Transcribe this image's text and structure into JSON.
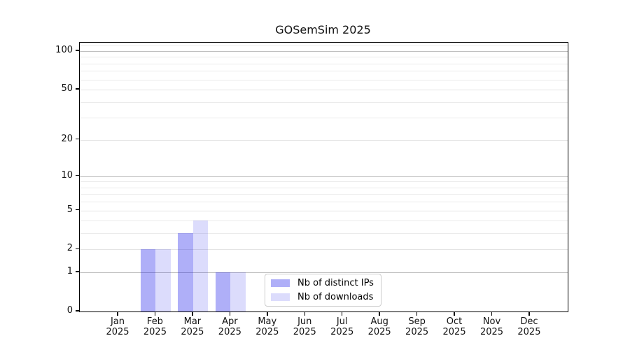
{
  "chart_data": {
    "type": "bar",
    "title": "GOSemSim 2025",
    "categories": [
      "Jan",
      "Feb",
      "Mar",
      "Apr",
      "May",
      "Jun",
      "Jul",
      "Aug",
      "Sep",
      "Oct",
      "Nov",
      "Dec"
    ],
    "year_label": "2025",
    "series": [
      {
        "name": "Nb of distinct IPs",
        "color": "rgba(20,20,235,0.34)",
        "values": [
          0,
          2,
          3,
          1,
          0,
          0,
          0,
          0,
          0,
          0,
          0,
          0
        ]
      },
      {
        "name": "Nb of downloads",
        "color": "rgba(20,20,235,0.15)",
        "values": [
          0,
          2,
          4,
          1,
          0,
          0,
          0,
          0,
          0,
          0,
          0,
          0
        ]
      }
    ],
    "yscale": "log1p",
    "ylim": [
      0,
      116
    ],
    "ytick_values": [
      0,
      1,
      2,
      5,
      10,
      20,
      50,
      100
    ],
    "ytick_labels": [
      "0",
      "1",
      "2",
      "5",
      "10",
      "20",
      "50",
      "100"
    ],
    "major_gridline_values": [
      1,
      10,
      100
    ],
    "sub_gridline_values": [
      2,
      5,
      20,
      50
    ],
    "minor_gridline_values": [
      3,
      4,
      6,
      7,
      8,
      9,
      30,
      40,
      60,
      70,
      80,
      90,
      110
    ],
    "grid": "on",
    "legend_position": "lower-center",
    "colors": {
      "bar_dark_on_white": "#abaaf8",
      "bar_light_on_white": "#dbdbf9",
      "grid_major": "#bfbfbf",
      "grid_minor": "#ebebeb",
      "spine": "#000000"
    }
  }
}
